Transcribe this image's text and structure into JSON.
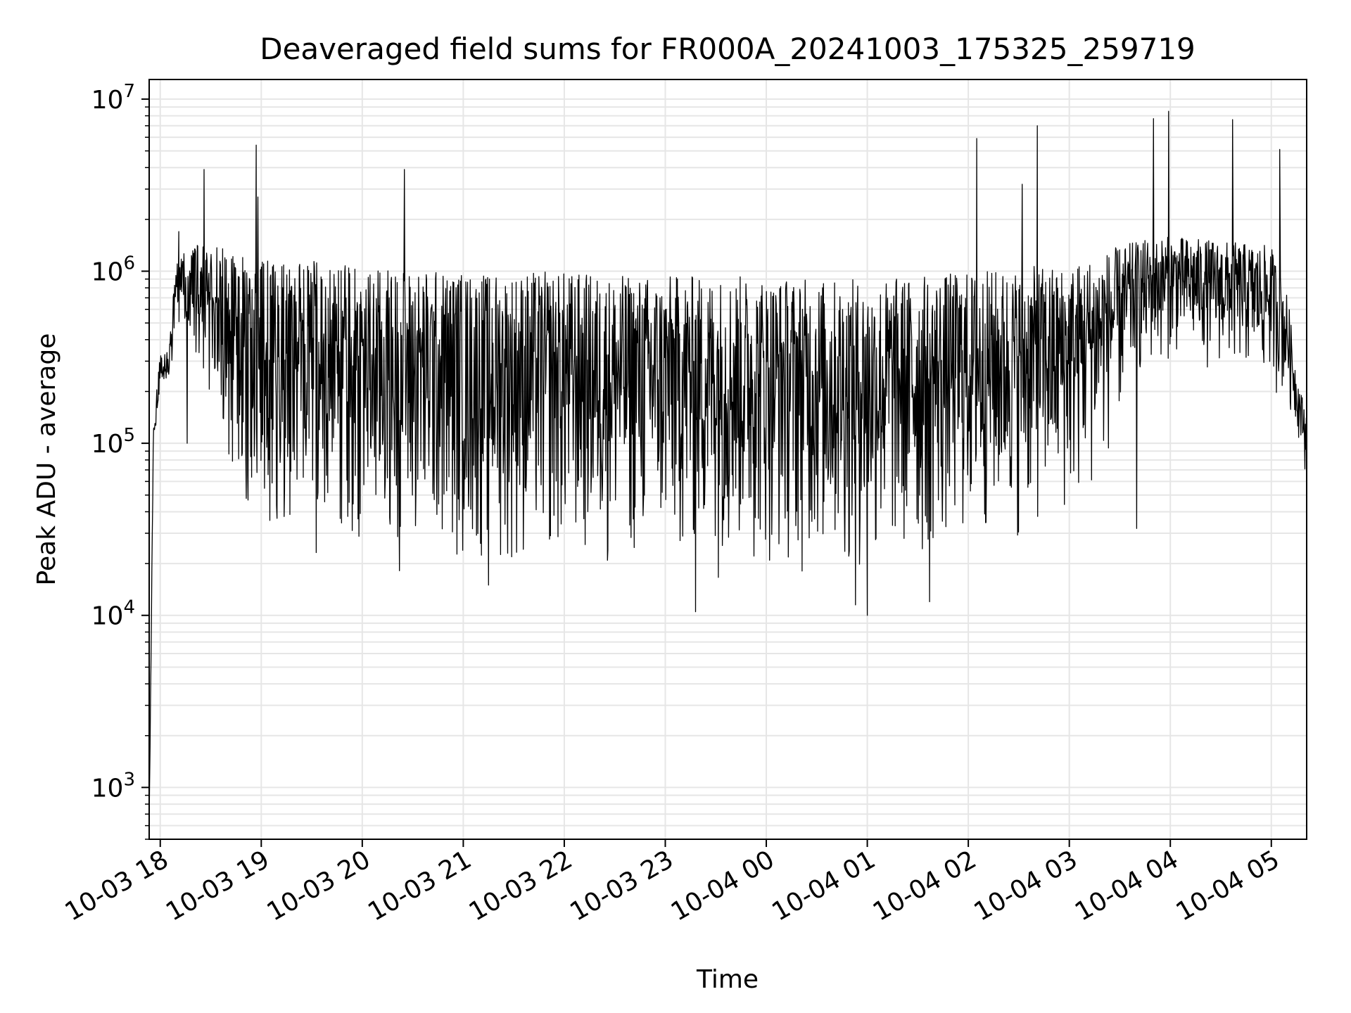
{
  "chart_data": {
    "type": "line",
    "title": "Deaveraged field sums for FR000A_20241003_175325_259719",
    "xlabel": "Time",
    "ylabel": "Peak ADU - average",
    "x_axis": {
      "kind": "datetime",
      "range": [
        "2024-10-03 17:53:25",
        "2024-10-04 05:21:00"
      ],
      "ticks": [
        "10-03 18",
        "10-03 19",
        "10-03 20",
        "10-03 21",
        "10-03 22",
        "10-03 23",
        "10-04 00",
        "10-04 01",
        "10-04 02",
        "10-04 03",
        "10-04 04",
        "10-04 05"
      ]
    },
    "y_axis": {
      "scale": "log",
      "range": [
        500,
        13000000
      ],
      "ticks": [
        {
          "base": "10",
          "exp": "3"
        },
        {
          "base": "10",
          "exp": "4"
        },
        {
          "base": "10",
          "exp": "5"
        },
        {
          "base": "10",
          "exp": "6"
        },
        {
          "base": "10",
          "exp": "7"
        }
      ]
    },
    "grid": true,
    "legend": "none",
    "colors": {
      "line": "#000000",
      "grid": "#e6e6e6",
      "axis": "#000000"
    },
    "series": [
      {
        "description_of_envelope": "dense noisy time series; each row = [time, low value, high value] of the oscillating signal",
        "envelope": [
          [
            "2024-10-03 17:53:25",
            600,
            600
          ],
          [
            "2024-10-03 17:56:00",
            100000,
            160000
          ],
          [
            "2024-10-03 18:00:00",
            200000,
            330000
          ],
          [
            "2024-10-03 18:05:00",
            250000,
            400000
          ],
          [
            "2024-10-03 18:10:00",
            350000,
            1200000
          ],
          [
            "2024-10-03 18:20:00",
            250000,
            1400000
          ],
          [
            "2024-10-03 18:30:00",
            150000,
            1500000
          ],
          [
            "2024-10-03 18:40:00",
            60000,
            1400000
          ],
          [
            "2024-10-03 18:50:00",
            30000,
            1200000
          ],
          [
            "2024-10-03 19:00:00",
            25000,
            1150000
          ],
          [
            "2024-10-03 19:30:00",
            20000,
            1150000
          ],
          [
            "2024-10-03 20:00:00",
            18000,
            1050000
          ],
          [
            "2024-10-03 20:30:00",
            17000,
            1050000
          ],
          [
            "2024-10-03 21:00:00",
            17000,
            1000000
          ],
          [
            "2024-10-03 21:30:00",
            16000,
            1000000
          ],
          [
            "2024-10-03 22:00:00",
            16000,
            1000000
          ],
          [
            "2024-10-03 22:30:00",
            16000,
            950000
          ],
          [
            "2024-10-03 23:00:00",
            16000,
            950000
          ],
          [
            "2024-10-03 23:30:00",
            16000,
            950000
          ],
          [
            "2024-10-04 00:00:00",
            16000,
            950000
          ],
          [
            "2024-10-04 00:30:00",
            15000,
            900000
          ],
          [
            "2024-10-04 01:00:00",
            14000,
            900000
          ],
          [
            "2024-10-04 01:30:00",
            15000,
            950000
          ],
          [
            "2024-10-04 02:00:00",
            22000,
            1000000
          ],
          [
            "2024-10-04 02:30:00",
            25000,
            1050000
          ],
          [
            "2024-10-04 03:00:00",
            30000,
            1100000
          ],
          [
            "2024-10-04 03:20:00",
            60000,
            1300000
          ],
          [
            "2024-10-04 03:40:00",
            200000,
            1500000
          ],
          [
            "2024-10-04 04:00:00",
            300000,
            1600000
          ],
          [
            "2024-10-04 04:30:00",
            250000,
            1500000
          ],
          [
            "2024-10-04 05:00:00",
            200000,
            1400000
          ],
          [
            "2024-10-04 05:10:00",
            150000,
            700000
          ],
          [
            "2024-10-04 05:15:00",
            120000,
            250000
          ],
          [
            "2024-10-04 05:21:00",
            60000,
            150000
          ]
        ],
        "spikes": [
          [
            "2024-10-03 18:11:00",
            1700000
          ],
          [
            "2024-10-03 18:26:00",
            3900000
          ],
          [
            "2024-10-03 18:57:00",
            5400000
          ],
          [
            "2024-10-03 18:58:00",
            2700000
          ],
          [
            "2024-10-03 20:25:00",
            3900000
          ],
          [
            "2024-10-04 02:05:00",
            5900000
          ],
          [
            "2024-10-04 02:32:00",
            3200000
          ],
          [
            "2024-10-04 02:41:00",
            7000000
          ],
          [
            "2024-10-04 03:50:00",
            7700000
          ],
          [
            "2024-10-04 03:59:00",
            8500000
          ],
          [
            "2024-10-04 04:37:00",
            7600000
          ],
          [
            "2024-10-04 05:05:00",
            5100000
          ]
        ],
        "dips": [
          [
            "2024-10-03 18:16:00",
            100000
          ],
          [
            "2024-10-03 21:15:00",
            15000
          ],
          [
            "2024-10-03 23:18:00",
            10500
          ],
          [
            "2024-10-04 00:53:00",
            11500
          ],
          [
            "2024-10-04 01:00:00",
            10000
          ],
          [
            "2024-10-04 01:37:00",
            12000
          ],
          [
            "2024-10-04 03:40:00",
            32000
          ]
        ]
      }
    ]
  }
}
